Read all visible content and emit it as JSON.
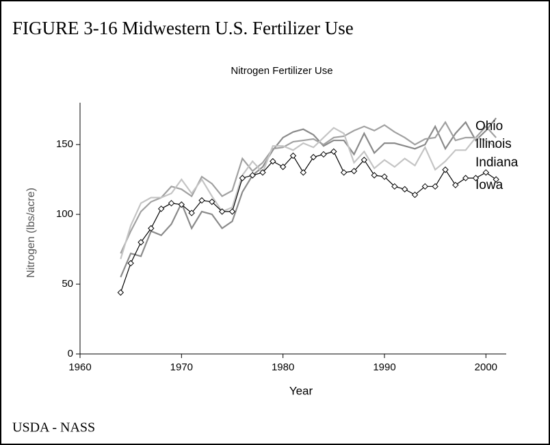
{
  "figure_title": "FIGURE 3-16 Midwestern U.S. Fertilizer Use",
  "source": "USDA - NASS",
  "chart_data": {
    "type": "line",
    "title": "Nitrogen Fertilizer Use",
    "x_label": "Year",
    "y_label": "Nitrogen (lbs/acre)",
    "x": [
      1964,
      1965,
      1966,
      1967,
      1968,
      1969,
      1970,
      1971,
      1972,
      1973,
      1974,
      1975,
      1976,
      1977,
      1978,
      1979,
      1980,
      1981,
      1982,
      1983,
      1984,
      1985,
      1986,
      1987,
      1988,
      1989,
      1990,
      1991,
      1992,
      1993,
      1994,
      1995,
      1996,
      1997,
      1998,
      1999,
      2000,
      2001
    ],
    "series": [
      {
        "name": "Ohio",
        "color": "#8a8a8a",
        "marker": false,
        "values": [
          55,
          72,
          70,
          88,
          85,
          93,
          108,
          90,
          102,
          100,
          90,
          95,
          116,
          128,
          134,
          146,
          155,
          159,
          161,
          157,
          149,
          153,
          153,
          143,
          158,
          144,
          151,
          151,
          149,
          147,
          150,
          163,
          147,
          158,
          166,
          153,
          160,
          169
        ]
      },
      {
        "name": "Illinois",
        "color": "#a0a0a0",
        "marker": false,
        "values": [
          72,
          88,
          102,
          109,
          112,
          120,
          118,
          113,
          127,
          122,
          113,
          117,
          140,
          131,
          137,
          147,
          148,
          152,
          153,
          154,
          150,
          155,
          156,
          160,
          163,
          160,
          164,
          159,
          155,
          150,
          154,
          155,
          166,
          153,
          155,
          155,
          163,
          155
        ]
      },
      {
        "name": "Indiana",
        "color": "#c4c4c4",
        "marker": false,
        "values": [
          68,
          92,
          108,
          112,
          112,
          115,
          125,
          115,
          125,
          113,
          102,
          105,
          128,
          138,
          130,
          149,
          149,
          146,
          151,
          148,
          155,
          162,
          158,
          137,
          145,
          133,
          139,
          134,
          140,
          135,
          148,
          132,
          138,
          146,
          146,
          155,
          153,
          148
        ]
      },
      {
        "name": "Iowa",
        "color": "#000000",
        "marker": true,
        "values": [
          44,
          65,
          80,
          90,
          104,
          108,
          107,
          101,
          110,
          109,
          102,
          102,
          126,
          128,
          130,
          138,
          134,
          142,
          130,
          141,
          143,
          145,
          130,
          131,
          139,
          128,
          127,
          120,
          118,
          114,
          120,
          120,
          132,
          121,
          126,
          126,
          130,
          125
        ]
      }
    ],
    "xlim": [
      1960,
      2002
    ],
    "xticks": [
      1960,
      1970,
      1980,
      1990,
      2000
    ],
    "ylim": [
      0,
      180
    ],
    "yticks": [
      0,
      50,
      100,
      150
    ],
    "grid": false
  }
}
